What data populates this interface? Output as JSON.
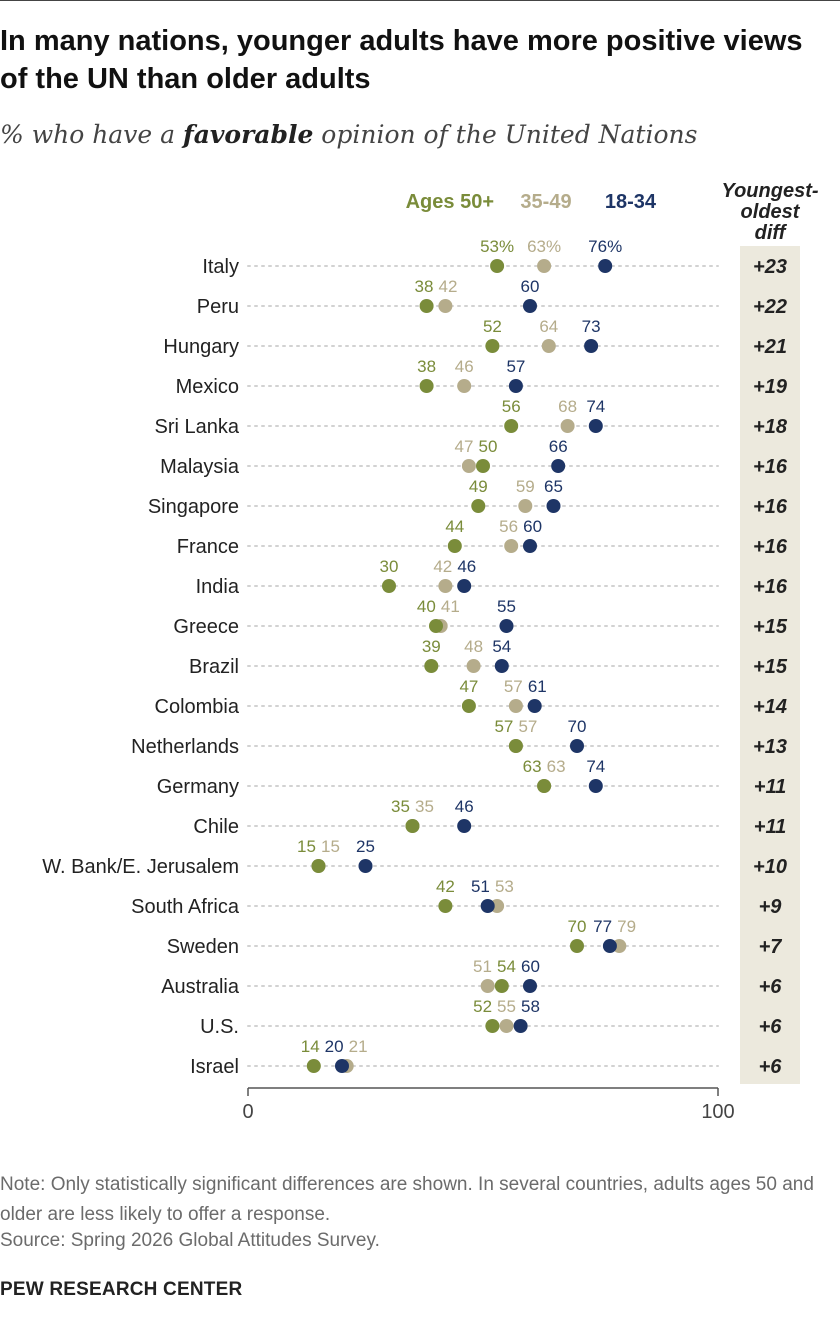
{
  "title": "In many nations, younger adults have more positive views of the UN than older adults",
  "subtitle_pre": "% who have a ",
  "subtitle_bold": "favorable",
  "subtitle_post": " opinion of the United Nations",
  "diff_header": [
    "Youngest-",
    "oldest",
    "diff"
  ],
  "note": "Note: Only statistically significant differences are shown. In several countries, adults ages 50 and older are less likely to offer a response.",
  "source": "Source: Spring 2026 Global Attitudes Survey.",
  "brand": "PEW RESEARCH CENTER",
  "colors": {
    "ages50": "#7a8c3a",
    "ages35": "#b5ac8b",
    "ages18": "#1e3566",
    "diff_bg": "#ece9dd",
    "grid": "#d2d2d2"
  },
  "chart_data": {
    "type": "scatter",
    "title": "In many nations, younger adults have more positive views of the UN than older adults",
    "xlim": [
      0,
      100
    ],
    "x_ticks": [
      "0",
      "100"
    ],
    "legend_placement": "top",
    "series": [
      {
        "name": "Ages 50+",
        "key": "ages50"
      },
      {
        "name": "35-49",
        "key": "ages35"
      },
      {
        "name": "18-34",
        "key": "ages18"
      }
    ],
    "rows": [
      {
        "country": "Italy",
        "ages50": 53,
        "ages35": 63,
        "ages18": 76,
        "diff": "+23",
        "l50": "53%",
        "l35": "63%",
        "l18": "76%"
      },
      {
        "country": "Peru",
        "ages50": 38,
        "ages35": 42,
        "ages18": 60,
        "diff": "+22",
        "l50": "38",
        "l35": "42",
        "l18": "60"
      },
      {
        "country": "Hungary",
        "ages50": 52,
        "ages35": 64,
        "ages18": 73,
        "diff": "+21",
        "l50": "52",
        "l35": "64",
        "l18": "73"
      },
      {
        "country": "Mexico",
        "ages50": 38,
        "ages35": 46,
        "ages18": 57,
        "diff": "+19",
        "l50": "38",
        "l35": "46",
        "l18": "57"
      },
      {
        "country": "Sri Lanka",
        "ages50": 56,
        "ages35": 68,
        "ages18": 74,
        "diff": "+18",
        "l50": "56",
        "l35": "68",
        "l18": "74"
      },
      {
        "country": "Malaysia",
        "ages50": 50,
        "ages35": 47,
        "ages18": 66,
        "diff": "+16",
        "l50": "50",
        "l35": "47",
        "l18": "66"
      },
      {
        "country": "Singapore",
        "ages50": 49,
        "ages35": 59,
        "ages18": 65,
        "diff": "+16",
        "l50": "49",
        "l35": "59",
        "l18": "65"
      },
      {
        "country": "France",
        "ages50": 44,
        "ages35": 56,
        "ages18": 60,
        "diff": "+16",
        "l50": "44",
        "l35": "56",
        "l18": "60"
      },
      {
        "country": "India",
        "ages50": 30,
        "ages35": 42,
        "ages18": 46,
        "diff": "+16",
        "l50": "30",
        "l35": "42",
        "l18": "46"
      },
      {
        "country": "Greece",
        "ages50": 40,
        "ages35": 41,
        "ages18": 55,
        "diff": "+15",
        "l50": "40",
        "l35": "41",
        "l18": "55"
      },
      {
        "country": "Brazil",
        "ages50": 39,
        "ages35": 48,
        "ages18": 54,
        "diff": "+15",
        "l50": "39",
        "l35": "48",
        "l18": "54"
      },
      {
        "country": "Colombia",
        "ages50": 47,
        "ages35": 57,
        "ages18": 61,
        "diff": "+14",
        "l50": "47",
        "l35": "57",
        "l18": "61"
      },
      {
        "country": "Netherlands",
        "ages50": 57,
        "ages35": 57,
        "ages18": 70,
        "diff": "+13",
        "l50": "57",
        "l35": "57",
        "l18": "70"
      },
      {
        "country": "Germany",
        "ages50": 63,
        "ages35": 63,
        "ages18": 74,
        "diff": "+11",
        "l50": "63",
        "l35": "63",
        "l18": "74"
      },
      {
        "country": "Chile",
        "ages50": 35,
        "ages35": 35,
        "ages18": 46,
        "diff": "+11",
        "l50": "35",
        "l35": "35",
        "l18": "46"
      },
      {
        "country": "W. Bank/E. Jerusalem",
        "ages50": 15,
        "ages35": 15,
        "ages18": 25,
        "diff": "+10",
        "l50": "15",
        "l35": "15",
        "l18": "25"
      },
      {
        "country": "South Africa",
        "ages50": 42,
        "ages35": 53,
        "ages18": 51,
        "diff": "+9",
        "l50": "42",
        "l35": "53",
        "l18": "51"
      },
      {
        "country": "Sweden",
        "ages50": 70,
        "ages35": 79,
        "ages18": 77,
        "diff": "+7",
        "l50": "70",
        "l35": "79",
        "l18": "77"
      },
      {
        "country": "Australia",
        "ages50": 54,
        "ages35": 51,
        "ages18": 60,
        "diff": "+6",
        "l50": "54",
        "l35": "51",
        "l18": "60"
      },
      {
        "country": "U.S.",
        "ages50": 52,
        "ages35": 55,
        "ages18": 58,
        "diff": "+6",
        "l50": "52",
        "l35": "55",
        "l18": "58"
      },
      {
        "country": "Israel",
        "ages50": 14,
        "ages35": 21,
        "ages18": 20,
        "diff": "+6",
        "l50": "14",
        "l35": "21",
        "l18": "20"
      }
    ]
  }
}
